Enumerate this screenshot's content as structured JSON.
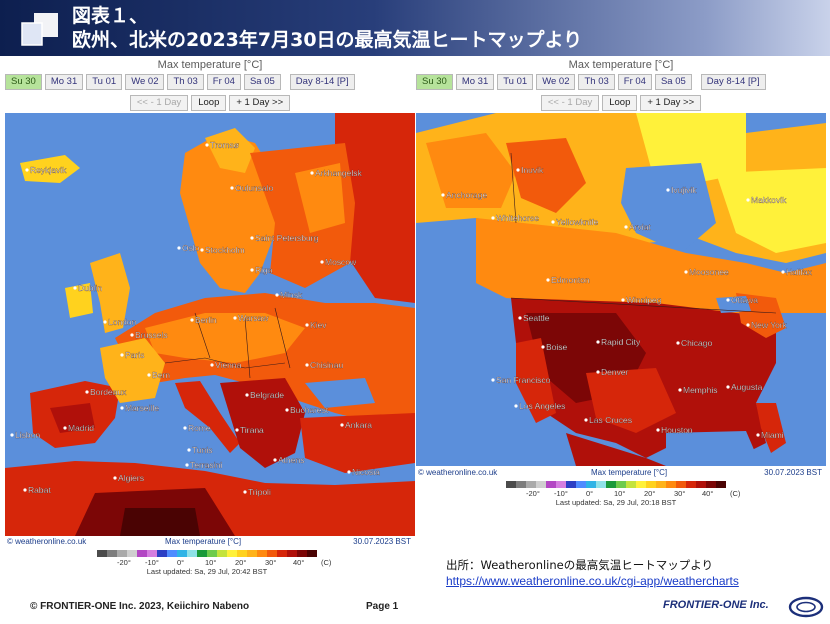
{
  "header": {
    "title_line1": "図表１、",
    "title_line2": "欧州、北米の2023年7月30日の最高気温ヒートマップより"
  },
  "maps": [
    {
      "id": "europe",
      "title": "Max temperature [°C]",
      "days": [
        "Su 30",
        "Mo 31",
        "Tu 01",
        "We 02",
        "Th 03",
        "Fr 04",
        "Sa 05"
      ],
      "active_day": "Su 30",
      "extra_day": "Day 8-14 [P]",
      "nav": {
        "prev": "<< - 1 Day",
        "loop": "Loop",
        "next": "+ 1 Day >>"
      },
      "footer": {
        "source": "© weatheronline.co.uk",
        "title": "Max temperature [°C]",
        "date": "30.07.2023 BST"
      },
      "legend_ticks": [
        "-20°",
        "-10°",
        "0°",
        "10°",
        "20°",
        "30°",
        "40°"
      ],
      "legend_unit": "(C)",
      "last_updated": "Last updated: Sa, 29 Jul, 20:42 BST",
      "cities": [
        {
          "name": "Reykjavik"
        },
        {
          "name": "Tromsø"
        },
        {
          "name": "Oulunsalo"
        },
        {
          "name": "Arkhangelsk"
        },
        {
          "name": "Dublin"
        },
        {
          "name": "Oslo"
        },
        {
          "name": "Stockholm"
        },
        {
          "name": "Saint Petersburg"
        },
        {
          "name": "Riga"
        },
        {
          "name": "Moscow"
        },
        {
          "name": "Minsk"
        },
        {
          "name": "London"
        },
        {
          "name": "Brussels"
        },
        {
          "name": "Berlin"
        },
        {
          "name": "Warsaw"
        },
        {
          "name": "Kiev"
        },
        {
          "name": "Paris"
        },
        {
          "name": "Vienna"
        },
        {
          "name": "Chisinau"
        },
        {
          "name": "Bern"
        },
        {
          "name": "Bordeaux"
        },
        {
          "name": "Marseille"
        },
        {
          "name": "Belgrade"
        },
        {
          "name": "Bucharest"
        },
        {
          "name": "Madrid"
        },
        {
          "name": "Lisbon"
        },
        {
          "name": "Rome"
        },
        {
          "name": "Tirana"
        },
        {
          "name": "Ankara"
        },
        {
          "name": "Athens"
        },
        {
          "name": "Nicosia"
        },
        {
          "name": "Algiers"
        },
        {
          "name": "Rabat"
        },
        {
          "name": "Tunis"
        },
        {
          "name": "Terrasini"
        },
        {
          "name": "Tripoli"
        }
      ]
    },
    {
      "id": "north-america",
      "title": "Max temperature [°C]",
      "days": [
        "Su 30",
        "Mo 31",
        "Tu 01",
        "We 02",
        "Th 03",
        "Fr 04",
        "Sa 05"
      ],
      "active_day": "Su 30",
      "extra_day": "Day 8-14 [P]",
      "nav": {
        "prev": "<< - 1 Day",
        "loop": "Loop",
        "next": "+ 1 Day >>"
      },
      "footer": {
        "source": "© weatheronline.co.uk",
        "title": "Max temperature [°C]",
        "date": "30.07.2023 BST"
      },
      "legend_ticks": [
        "-20°",
        "-10°",
        "0°",
        "10°",
        "20°",
        "30°",
        "40°"
      ],
      "legend_unit": "(C)",
      "last_updated": "Last updated: Sa, 29 Jul, 20:18 BST",
      "cities": [
        {
          "name": "Inuvik"
        },
        {
          "name": "Anchorage"
        },
        {
          "name": "Ivujivik"
        },
        {
          "name": "Makkovik"
        },
        {
          "name": "Whitehorse"
        },
        {
          "name": "Yellowknife"
        },
        {
          "name": "Arviat"
        },
        {
          "name": "Edmonton"
        },
        {
          "name": "Moosonee"
        },
        {
          "name": "Halifax"
        },
        {
          "name": "Winnipeg"
        },
        {
          "name": "Ottawa"
        },
        {
          "name": "Seattle"
        },
        {
          "name": "New York"
        },
        {
          "name": "Boise"
        },
        {
          "name": "Rapid City"
        },
        {
          "name": "Chicago"
        },
        {
          "name": "Denver"
        },
        {
          "name": "San Francisco"
        },
        {
          "name": "Memphis"
        },
        {
          "name": "Augusta"
        },
        {
          "name": "Los Angeles"
        },
        {
          "name": "Las Cruces"
        },
        {
          "name": "Houston"
        },
        {
          "name": "Miami"
        }
      ]
    }
  ],
  "legend_colors": [
    "#4b4b4b",
    "#7d7d7d",
    "#aaaaaa",
    "#cfcfcf",
    "#b347c4",
    "#d57ee0",
    "#2c3fc4",
    "#4f8cff",
    "#2fb4e6",
    "#8fe2e8",
    "#1a9a3a",
    "#6ecb4b",
    "#c4e33c",
    "#fff13a",
    "#ffd21e",
    "#ffb31a",
    "#ff8a10",
    "#f25a0c",
    "#d6260a",
    "#b0100a",
    "#7c0606",
    "#4a0303"
  ],
  "citation": {
    "label": "出所：Weatheronlineの最高気温ヒートマップより",
    "url": "https://www.weatheronline.co.uk/cgi-app/weathercharts"
  },
  "footer": {
    "copyright": "© FRONTIER-ONE Inc. 2023,  Keiichiro  Nabeno",
    "page": "Page 1",
    "brand": "FRONTIER-ONE Inc."
  }
}
